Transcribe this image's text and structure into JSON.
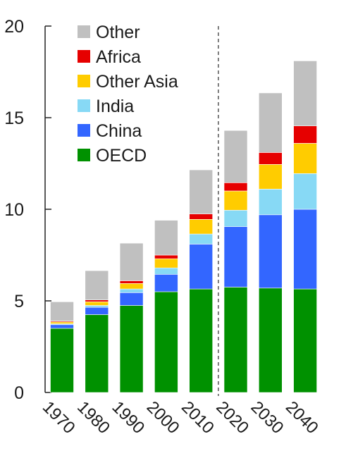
{
  "chart_data": {
    "type": "bar",
    "stacked": true,
    "categories": [
      "1970",
      "1980",
      "1990",
      "2000",
      "2010",
      "2020",
      "2030",
      "2040"
    ],
    "ylim": [
      0,
      20
    ],
    "yticks": [
      0,
      5,
      10,
      15,
      20
    ],
    "ytick_labels": [
      "0",
      "5",
      "10",
      "15",
      "20"
    ],
    "projection_divider_between": [
      "2010",
      "2020"
    ],
    "legend_position": "top-left",
    "grid": false,
    "series": [
      {
        "name": "OECD",
        "color": "#009100",
        "values": [
          3.5,
          4.25,
          4.75,
          5.5,
          5.65,
          5.75,
          5.7,
          5.65
        ]
      },
      {
        "name": "China",
        "color": "#3366ff",
        "values": [
          0.2,
          0.4,
          0.7,
          0.95,
          2.45,
          3.3,
          4.0,
          4.35
        ]
      },
      {
        "name": "India",
        "color": "#87d9f5",
        "values": [
          0.05,
          0.1,
          0.2,
          0.35,
          0.55,
          0.9,
          1.4,
          1.95
        ]
      },
      {
        "name": "Other Asia",
        "color": "#ffcc00",
        "values": [
          0.1,
          0.2,
          0.3,
          0.5,
          0.8,
          1.05,
          1.35,
          1.65
        ]
      },
      {
        "name": "Africa",
        "color": "#e60000",
        "values": [
          0.05,
          0.1,
          0.15,
          0.2,
          0.3,
          0.45,
          0.65,
          0.95
        ]
      },
      {
        "name": "Other",
        "color": "#c0c0c0",
        "values": [
          1.05,
          1.6,
          2.05,
          1.9,
          2.4,
          2.85,
          3.25,
          3.55
        ]
      }
    ]
  }
}
